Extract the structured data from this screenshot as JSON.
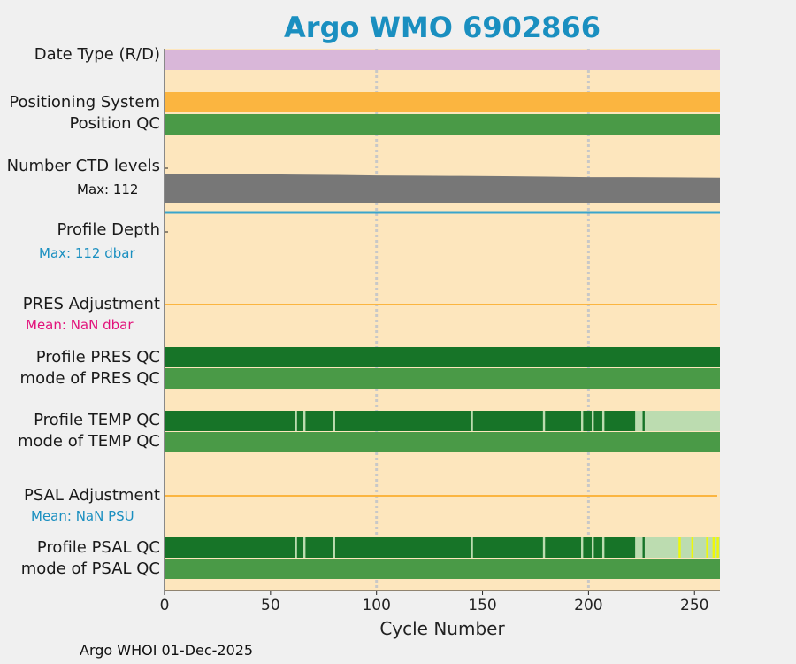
{
  "chart_data": {
    "type": "table",
    "title": "Argo WMO 6902866",
    "xlabel": "Cycle Number",
    "xlim": [
      0,
      262
    ],
    "xticks": [
      0,
      50,
      100,
      150,
      200,
      250
    ],
    "grid_x": [
      100,
      200
    ],
    "footer": "Argo WHOI 01-Dec-2025",
    "colors": {
      "background": "#fde6bd",
      "date_type": "#d9b7d9",
      "positioning": "#fbb540",
      "qc_good": "#4a9a47",
      "qc_profile_A": "#177428",
      "qc_profile_B": "#bcdcb0",
      "qc_profile_flag": "#eef80a",
      "ctd_levels": "#777777",
      "profile_depth": "#3aa5cc",
      "adjustment_line": "#fbb540",
      "pres_mean": "#e2127b",
      "psal_mean": "#1a8fc0"
    },
    "rows": {
      "date_type": {
        "label": "Date Type (R/D)"
      },
      "positioning_system": {
        "label": "Positioning System"
      },
      "position_qc": {
        "label": "Position QC"
      },
      "ctd_levels": {
        "label": "Number CTD levels",
        "note": "Max: 112"
      },
      "profile_depth": {
        "label": "Profile Depth",
        "note": "Max:  112 dbar"
      },
      "pres_adjustment": {
        "label": "PRES Adjustment",
        "note": "Mean:  NaN dbar"
      },
      "profile_pres_qc": {
        "label": "Profile PRES QC"
      },
      "mode_pres_qc": {
        "label": "mode of PRES QC"
      },
      "profile_temp_qc": {
        "label": "Profile TEMP QC"
      },
      "mode_temp_qc": {
        "label": "mode of TEMP QC"
      },
      "psal_adjustment": {
        "label": "PSAL Adjustment",
        "note": "Mean:  NaN PSU"
      },
      "profile_psal_qc": {
        "label": "Profile PSAL QC"
      },
      "mode_psal_qc": {
        "label": "mode of PSAL QC"
      }
    },
    "ctd_levels_series": {
      "x": [
        0,
        20,
        40,
        60,
        80,
        100,
        120,
        140,
        160,
        180,
        200,
        220,
        240,
        262
      ],
      "y": [
        112,
        111,
        110,
        108,
        107,
        105,
        104,
        103,
        102,
        100,
        98,
        98,
        97,
        96
      ]
    },
    "temp_qc_light_cycles": [
      62,
      66,
      80,
      145,
      179,
      197,
      202,
      207
    ],
    "temp_qc_light_range": [
      222,
      262
    ],
    "temp_qc_dark_cycles": [
      226
    ],
    "psal_qc_light_cycles": [
      62,
      66,
      80,
      145,
      179,
      197,
      202,
      207
    ],
    "psal_qc_light_range": [
      222,
      262
    ],
    "psal_qc_dark_cycles": [
      226
    ],
    "psal_qc_flag_cycles": [
      243,
      249,
      256,
      259,
      261
    ]
  }
}
